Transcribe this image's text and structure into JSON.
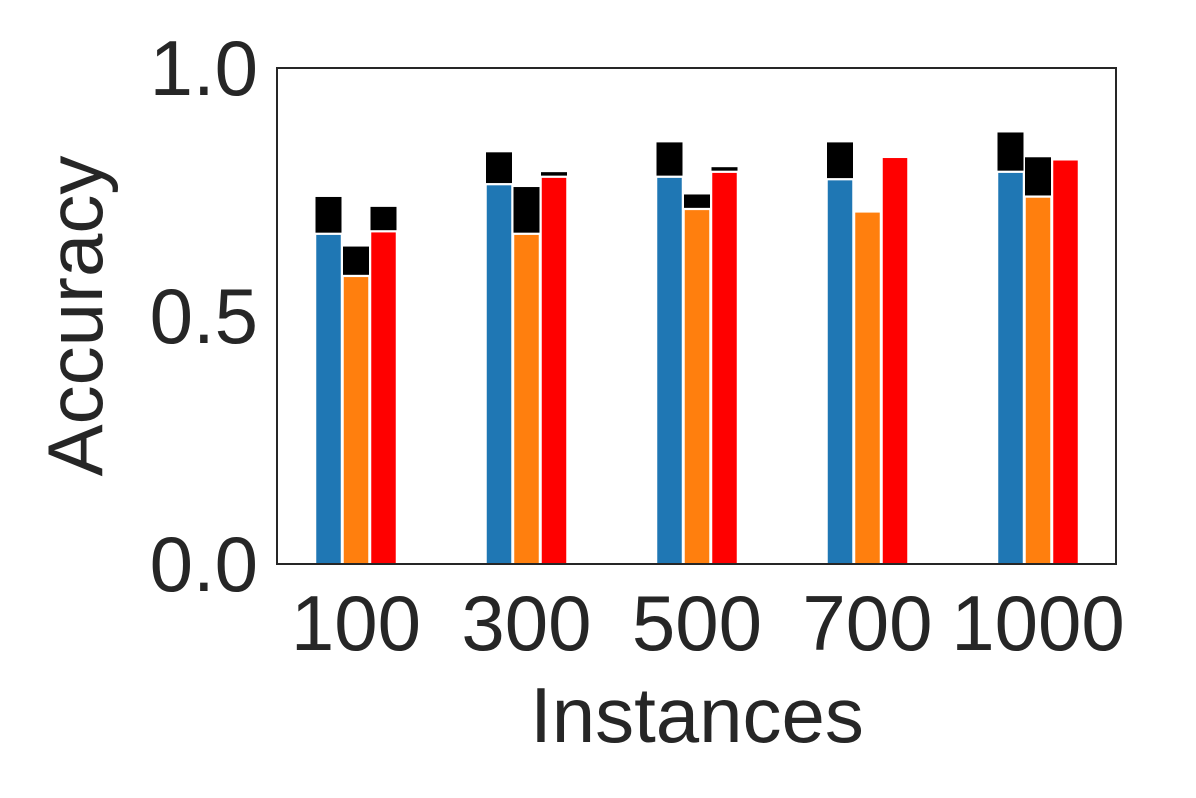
{
  "chart_data": {
    "type": "bar",
    "title": "",
    "xlabel": "Instances",
    "ylabel": "Accuracy",
    "categories": [
      "100",
      "300",
      "500",
      "700",
      "1000"
    ],
    "ylim": [
      0,
      1
    ],
    "yticks": [
      {
        "value": 0.0,
        "label": "0.0"
      },
      {
        "value": 0.5,
        "label": "0.5"
      },
      {
        "value": 1.0,
        "label": "1.0"
      }
    ],
    "grid": false,
    "legend": "none",
    "series": [
      {
        "values": [
          0.665,
          0.765,
          0.78,
          0.775,
          0.79
        ],
        "error_tops": [
          0.74,
          0.83,
          0.85,
          0.85,
          0.87
        ],
        "color": "#1f77b4"
      },
      {
        "values": [
          0.58,
          0.665,
          0.715,
          0.71,
          0.74
        ],
        "error_tops": [
          0.64,
          0.76,
          0.745,
          0.71,
          0.82
        ],
        "color": "#ff7f0e"
      },
      {
        "values": [
          0.67,
          0.78,
          0.79,
          0.82,
          0.815
        ],
        "error_tops": [
          0.72,
          0.79,
          0.8,
          0.82,
          0.815
        ],
        "color": "#ff0000"
      }
    ],
    "error_color": "#000000"
  }
}
